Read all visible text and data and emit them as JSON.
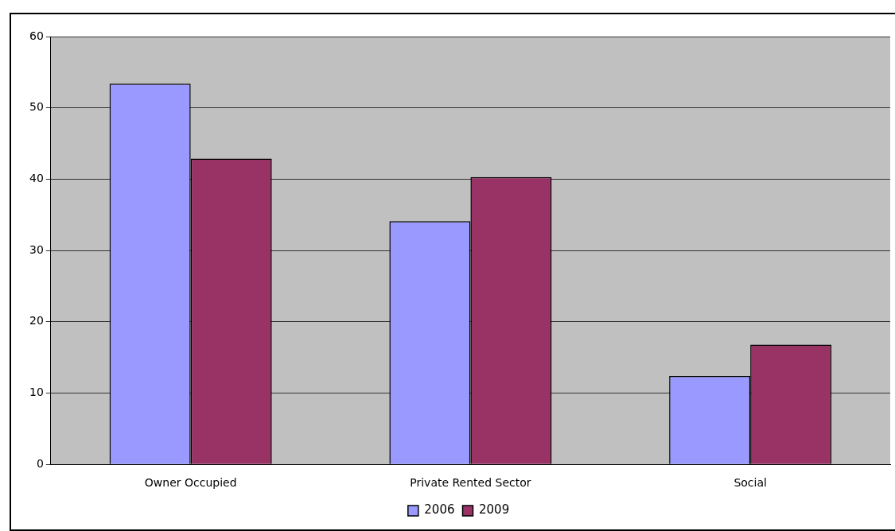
{
  "chart_data": {
    "type": "bar",
    "categories": [
      "Owner Occupied",
      "Private Rented Sector",
      "Social"
    ],
    "series": [
      {
        "name": "2006",
        "color": "#9999ff",
        "values": [
          53.4,
          34.1,
          12.4
        ]
      },
      {
        "name": "2009",
        "color": "#993366",
        "values": [
          42.9,
          40.3,
          16.8
        ]
      }
    ],
    "ylim": [
      0,
      60
    ],
    "yticks": [
      0,
      10,
      20,
      30,
      40,
      50,
      60
    ],
    "grid": "y",
    "legend": "bottom"
  }
}
